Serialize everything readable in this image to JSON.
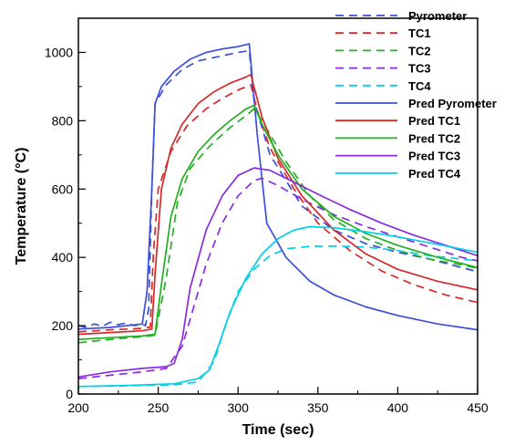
{
  "chart_data": {
    "type": "line",
    "xlabel": "Time (sec)",
    "ylabel": "Temperature (°C)",
    "xlim": [
      200,
      450
    ],
    "ylim": [
      0,
      1100
    ],
    "xticks": [
      200,
      250,
      300,
      350,
      400,
      450
    ],
    "yticks": [
      0,
      200,
      400,
      600,
      800,
      1000
    ],
    "legend_position": "top-right",
    "series": [
      {
        "name": "Pyrometer",
        "color": "#3b4fd8",
        "dash": true,
        "points": [
          [
            200,
            200
          ],
          [
            205,
            195
          ],
          [
            210,
            205
          ],
          [
            215,
            198
          ],
          [
            220,
            210
          ],
          [
            225,
            203
          ],
          [
            230,
            208
          ],
          [
            235,
            200
          ],
          [
            240,
            205
          ],
          [
            242,
            200
          ],
          [
            244,
            250
          ],
          [
            246,
            600
          ],
          [
            248,
            850
          ],
          [
            255,
            905
          ],
          [
            265,
            950
          ],
          [
            275,
            975
          ],
          [
            285,
            985
          ],
          [
            295,
            995
          ],
          [
            300,
            1000
          ],
          [
            307,
            1005
          ],
          [
            310,
            860
          ],
          [
            320,
            700
          ],
          [
            340,
            550
          ],
          [
            360,
            480
          ],
          [
            380,
            440
          ],
          [
            400,
            415
          ],
          [
            420,
            395
          ],
          [
            440,
            370
          ],
          [
            450,
            358
          ]
        ]
      },
      {
        "name": "TC1",
        "color": "#d42a2a",
        "dash": true,
        "points": [
          [
            200,
            182
          ],
          [
            220,
            188
          ],
          [
            240,
            192
          ],
          [
            245,
            196
          ],
          [
            247,
            410
          ],
          [
            250,
            600
          ],
          [
            258,
            710
          ],
          [
            268,
            785
          ],
          [
            280,
            835
          ],
          [
            290,
            865
          ],
          [
            300,
            890
          ],
          [
            308,
            905
          ],
          [
            312,
            830
          ],
          [
            320,
            720
          ],
          [
            335,
            600
          ],
          [
            350,
            500
          ],
          [
            370,
            420
          ],
          [
            390,
            360
          ],
          [
            410,
            320
          ],
          [
            430,
            290
          ],
          [
            450,
            268
          ]
        ]
      },
      {
        "name": "TC2",
        "color": "#22b022",
        "dash": true,
        "points": [
          [
            200,
            150
          ],
          [
            220,
            160
          ],
          [
            240,
            168
          ],
          [
            248,
            172
          ],
          [
            255,
            340
          ],
          [
            262,
            560
          ],
          [
            270,
            660
          ],
          [
            282,
            725
          ],
          [
            295,
            780
          ],
          [
            305,
            815
          ],
          [
            310,
            835
          ],
          [
            315,
            800
          ],
          [
            330,
            680
          ],
          [
            345,
            580
          ],
          [
            360,
            510
          ],
          [
            380,
            455
          ],
          [
            400,
            420
          ],
          [
            420,
            395
          ],
          [
            440,
            378
          ],
          [
            450,
            368
          ]
        ]
      },
      {
        "name": "TC3",
        "color": "#8a2be2",
        "dash": true,
        "points": [
          [
            200,
            45
          ],
          [
            220,
            55
          ],
          [
            240,
            65
          ],
          [
            255,
            75
          ],
          [
            265,
            140
          ],
          [
            272,
            250
          ],
          [
            280,
            380
          ],
          [
            290,
            500
          ],
          [
            300,
            580
          ],
          [
            310,
            625
          ],
          [
            315,
            632
          ],
          [
            325,
            610
          ],
          [
            340,
            570
          ],
          [
            360,
            525
          ],
          [
            380,
            490
          ],
          [
            400,
            460
          ],
          [
            420,
            430
          ],
          [
            440,
            400
          ],
          [
            450,
            390
          ]
        ]
      },
      {
        "name": "TC4",
        "color": "#00d0e8",
        "dash": true,
        "points": [
          [
            200,
            22
          ],
          [
            230,
            24
          ],
          [
            260,
            27
          ],
          [
            275,
            35
          ],
          [
            285,
            95
          ],
          [
            292,
            200
          ],
          [
            300,
            300
          ],
          [
            310,
            365
          ],
          [
            320,
            405
          ],
          [
            330,
            425
          ],
          [
            345,
            432
          ],
          [
            360,
            433
          ],
          [
            380,
            430
          ],
          [
            400,
            420
          ],
          [
            420,
            405
          ],
          [
            440,
            395
          ],
          [
            450,
            390
          ]
        ]
      },
      {
        "name": "Pred Pyrometer",
        "color": "#3b4fd8",
        "dash": false,
        "points": [
          [
            200,
            190
          ],
          [
            220,
            195
          ],
          [
            240,
            205
          ],
          [
            243,
            300
          ],
          [
            246,
            600
          ],
          [
            248,
            850
          ],
          [
            252,
            900
          ],
          [
            260,
            945
          ],
          [
            270,
            980
          ],
          [
            280,
            1000
          ],
          [
            290,
            1010
          ],
          [
            300,
            1017
          ],
          [
            307,
            1025
          ],
          [
            312,
            760
          ],
          [
            318,
            500
          ],
          [
            330,
            400
          ],
          [
            345,
            330
          ],
          [
            360,
            290
          ],
          [
            380,
            255
          ],
          [
            400,
            230
          ],
          [
            425,
            205
          ],
          [
            450,
            188
          ]
        ]
      },
      {
        "name": "Pred TC1",
        "color": "#d42a2a",
        "dash": false,
        "points": [
          [
            200,
            175
          ],
          [
            220,
            180
          ],
          [
            240,
            185
          ],
          [
            246,
            190
          ],
          [
            248,
            350
          ],
          [
            252,
            600
          ],
          [
            258,
            720
          ],
          [
            265,
            790
          ],
          [
            275,
            850
          ],
          [
            285,
            885
          ],
          [
            295,
            910
          ],
          [
            305,
            928
          ],
          [
            308,
            935
          ],
          [
            315,
            810
          ],
          [
            325,
            690
          ],
          [
            340,
            580
          ],
          [
            360,
            480
          ],
          [
            380,
            410
          ],
          [
            400,
            365
          ],
          [
            425,
            330
          ],
          [
            450,
            305
          ]
        ]
      },
      {
        "name": "Pred TC2",
        "color": "#22b022",
        "dash": false,
        "points": [
          [
            200,
            160
          ],
          [
            220,
            165
          ],
          [
            240,
            170
          ],
          [
            248,
            175
          ],
          [
            252,
            320
          ],
          [
            258,
            520
          ],
          [
            265,
            630
          ],
          [
            275,
            710
          ],
          [
            285,
            760
          ],
          [
            295,
            800
          ],
          [
            305,
            835
          ],
          [
            310,
            845
          ],
          [
            315,
            790
          ],
          [
            325,
            700
          ],
          [
            340,
            600
          ],
          [
            360,
            520
          ],
          [
            380,
            470
          ],
          [
            400,
            435
          ],
          [
            425,
            400
          ],
          [
            450,
            370
          ]
        ]
      },
      {
        "name": "Pred TC3",
        "color": "#8a2be2",
        "dash": false,
        "points": [
          [
            200,
            50
          ],
          [
            220,
            65
          ],
          [
            240,
            75
          ],
          [
            255,
            80
          ],
          [
            260,
            90
          ],
          [
            265,
            160
          ],
          [
            270,
            310
          ],
          [
            280,
            480
          ],
          [
            290,
            580
          ],
          [
            300,
            640
          ],
          [
            310,
            662
          ],
          [
            320,
            655
          ],
          [
            335,
            620
          ],
          [
            350,
            585
          ],
          [
            370,
            540
          ],
          [
            390,
            500
          ],
          [
            410,
            465
          ],
          [
            430,
            435
          ],
          [
            450,
            405
          ]
        ]
      },
      {
        "name": "Pred TC4",
        "color": "#00d0e8",
        "dash": false,
        "points": [
          [
            200,
            22
          ],
          [
            230,
            25
          ],
          [
            260,
            30
          ],
          [
            275,
            45
          ],
          [
            282,
            70
          ],
          [
            288,
            145
          ],
          [
            295,
            240
          ],
          [
            305,
            340
          ],
          [
            315,
            410
          ],
          [
            325,
            455
          ],
          [
            335,
            480
          ],
          [
            345,
            490
          ],
          [
            360,
            487
          ],
          [
            380,
            475
          ],
          [
            400,
            460
          ],
          [
            425,
            438
          ],
          [
            450,
            415
          ]
        ]
      }
    ]
  }
}
